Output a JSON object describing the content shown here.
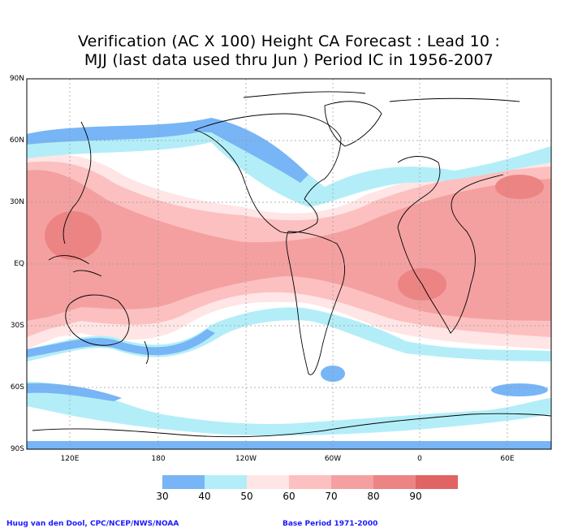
{
  "title": {
    "line1": "Verification (AC X 100) Height CA Forecast : Lead 10 :",
    "line2": "MJJ (last data used thru Jun ) Period IC in 1956-2007"
  },
  "axes": {
    "lat_labels": [
      "90N",
      "60N",
      "30N",
      "EQ",
      "30S",
      "60S",
      "90S"
    ],
    "lon_labels": [
      "120E",
      "180",
      "120W",
      "60W",
      "0",
      "60E"
    ]
  },
  "legend": {
    "ticks": [
      "30",
      "40",
      "50",
      "60",
      "70",
      "80",
      "90"
    ],
    "colors": [
      "#77b5f6",
      "#b3eef8",
      "#ffe5e5",
      "#fcc0c0",
      "#f4a0a0",
      "#ec8484",
      "#e06464"
    ]
  },
  "credits": {
    "left": "Huug van den Dool, CPC/NCEP/NWS/NOAA",
    "right": "Base Period 1971-2000"
  }
}
